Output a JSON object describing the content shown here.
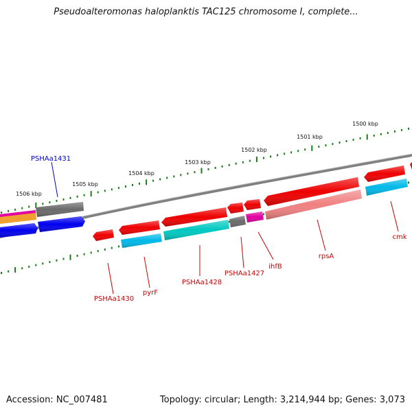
{
  "title": "Pseudoalteromonas haloplanktis TAC125 chromosome I, complete...",
  "footer": {
    "accession": "Accession: NC_007481",
    "topology": "Topology: circular; Length: 3,214,944 bp; Genes: 3,073"
  },
  "ticks": [
    "1500 kbp",
    "1501 kbp",
    "1502 kbp",
    "1503 kbp",
    "1504 kbp",
    "1505 kbp",
    "1506 kbp"
  ],
  "gene_labels": [
    "PSHAa1431",
    "PSHAa1430",
    "pyrF",
    "PSHAa1428",
    "PSHAa1427",
    "ihfB",
    "rpsA",
    "cmk"
  ],
  "colors": {
    "backbone": "#808080",
    "tick": "#1a7a1a",
    "forward_red": "#ee0000",
    "cog_blue": "#0000ee",
    "cog_cyan": "#00b8e8",
    "cog_teal": "#00c8c0",
    "cog_gray": "#6a6a6a",
    "cog_magenta": "#e000a0",
    "cog_pink": "#f08080",
    "cog_orange": "#f0a030",
    "label_red": "#cc0000",
    "label_blue": "#0000cc"
  }
}
